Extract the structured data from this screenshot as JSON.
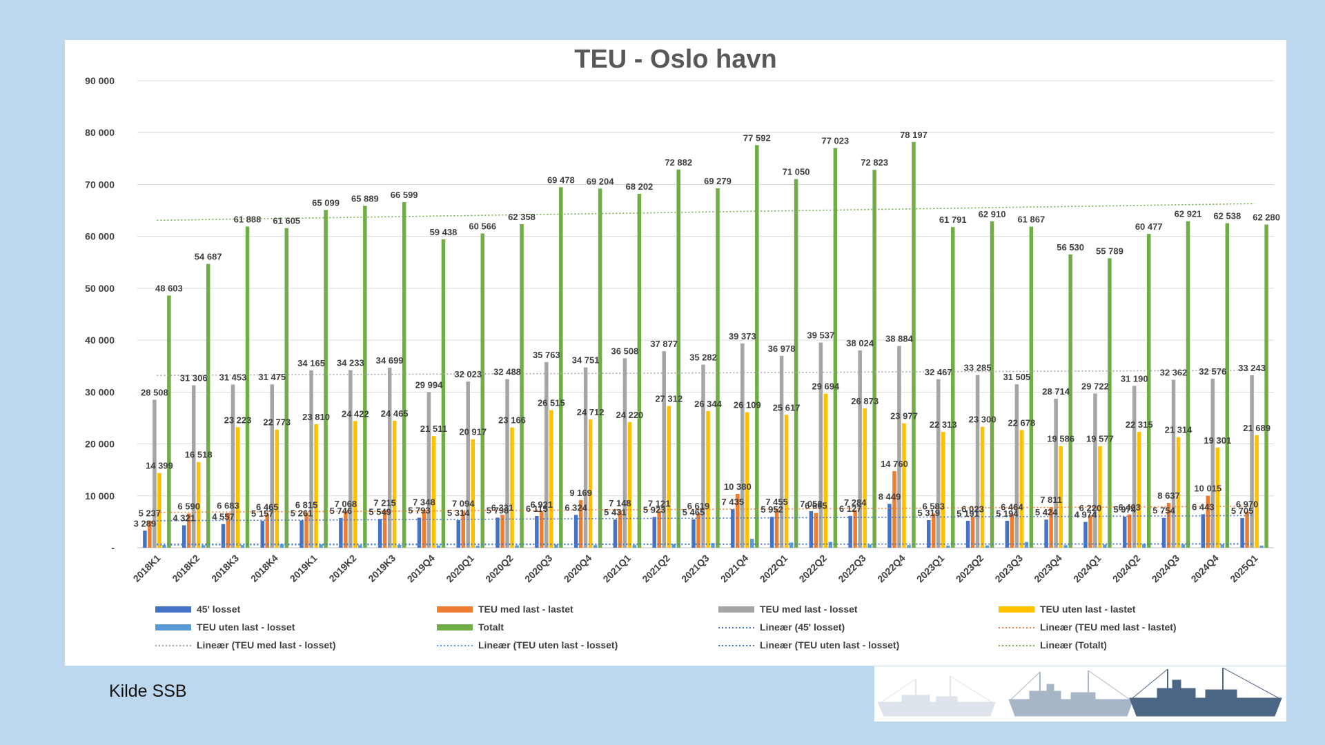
{
  "chart_data": {
    "type": "bar",
    "title": "TEU - Oslo havn",
    "ylim": [
      0,
      90000
    ],
    "yticks": [
      "-",
      "10 000",
      "20 000",
      "30 000",
      "40 000",
      "50 000",
      "60 000",
      "70 000",
      "80 000",
      "90 000"
    ],
    "grid": true,
    "legend_position": "bottom",
    "categories": [
      "2018K1",
      "2018K2",
      "2018K3",
      "2018K4",
      "2019K1",
      "2019K2",
      "2019K3",
      "2019Q4",
      "2020Q1",
      "2020Q2",
      "2020Q3",
      "2020Q4",
      "2021Q1",
      "2021Q2",
      "2021Q3",
      "2021Q4",
      "2022Q1",
      "2022Q2",
      "2022Q3",
      "2022Q4",
      "2023Q1",
      "2023Q2",
      "2023Q3",
      "2023Q4",
      "2024Q1",
      "2024Q2",
      "2024Q3",
      "2024Q4",
      "2025Q1"
    ],
    "series": [
      {
        "name": "45' losset",
        "color": "#4472c4",
        "values": [
          3289,
          4321,
          4557,
          5157,
          5261,
          5746,
          5549,
          5793,
          5314,
          5798,
          6115,
          6324,
          5431,
          5923,
          5465,
          7435,
          5952,
          7052,
          6127,
          8449,
          5319,
          5191,
          5194,
          5424,
          4974,
          5974,
          5754,
          6443,
          5705
        ],
        "labels": [
          "3 289",
          "4 321",
          "4 557",
          "5 157",
          "5 261",
          "5 746",
          "5 549",
          "5 793",
          "5 314",
          "5 798",
          "6 115",
          "6 324",
          "5 431",
          "5 923",
          "5 465",
          "7 435",
          "5 952",
          "7 052",
          "6 127",
          "8 449",
          "5 319",
          "5 191",
          "5 194",
          "5 424",
          "4 974",
          "5 974",
          "5 754",
          "6 443",
          "5 705"
        ]
      },
      {
        "name": "TEU med last - lastet",
        "color": "#ed7d31",
        "values": [
          5237,
          6590,
          6683,
          6465,
          6815,
          7068,
          7215,
          7348,
          7094,
          6331,
          6921,
          9169,
          7148,
          7121,
          6619,
          10380,
          7455,
          6695,
          7284,
          14760,
          6583,
          6023,
          6464,
          7811,
          6220,
          6403,
          8637,
          10015,
          6970
        ],
        "labels": [
          "5 237",
          "6 590",
          "6 683",
          "6 465",
          "6 815",
          "7 068",
          "7 215",
          "7 348",
          "7 094",
          "6 331",
          "6 921",
          "9 169",
          "7 148",
          "7 121",
          "6 619",
          "10 380",
          "7 455",
          "6 695",
          "7 284",
          "14 760",
          "6 583",
          "6 023",
          "6 464",
          "7 811",
          "6 220",
          "6 403",
          "8 637",
          "10 015",
          "6 970"
        ]
      },
      {
        "name": "TEU med last - losset",
        "color": "#a5a5a5",
        "values": [
          28508,
          31306,
          31453,
          31475,
          34165,
          34233,
          34699,
          29994,
          32023,
          32488,
          35763,
          34751,
          36508,
          37877,
          35282,
          39373,
          36978,
          39537,
          38024,
          38884,
          32467,
          33285,
          31505,
          28714,
          29722,
          31190,
          32362,
          32576,
          33243
        ],
        "labels": [
          "28 508",
          "31 306",
          "31 453",
          "31 475",
          "34 165",
          "34 233",
          "34 699",
          "29 994",
          "32 023",
          "32 488",
          "35 763",
          "34 751",
          "36 508",
          "37 877",
          "35 282",
          "39 373",
          "36 978",
          "39 537",
          "38 024",
          "38 884",
          "32 467",
          "33 285",
          "31 505",
          "28 714",
          "29 722",
          "31 190",
          "32 362",
          "32 576",
          "33 243"
        ]
      },
      {
        "name": "TEU uten last - lastet",
        "color": "#ffc000",
        "values": [
          14399,
          16518,
          23223,
          22773,
          23810,
          24422,
          24465,
          21511,
          20917,
          23166,
          26515,
          24712,
          24220,
          27312,
          26344,
          26109,
          25617,
          29694,
          26873,
          23977,
          22313,
          23300,
          22678,
          19586,
          19577,
          22315,
          21314,
          19301,
          21689
        ],
        "labels": [
          "14 399",
          "16 518",
          "23 223",
          "22 773",
          "23 810",
          "24 422",
          "24 465",
          "21 511",
          "20 917",
          "23 166",
          "26 515",
          "24 712",
          "24 220",
          "27 312",
          "26 344",
          "26 109",
          "25 617",
          "29 694",
          "26 873",
          "23 977",
          "22 313",
          "23 300",
          "22 678",
          "19 586",
          "19 577",
          "22 315",
          "21 314",
          "19 301",
          "21 689"
        ]
      },
      {
        "name": "TEU uten last - losset",
        "color": "#5b9bd5",
        "values": [
          500,
          480,
          520,
          700,
          650,
          500,
          550,
          420,
          380,
          450,
          600,
          500,
          520,
          700,
          900,
          1700,
          1000,
          1100,
          600,
          500,
          420,
          450,
          1100,
          500,
          600,
          700,
          650,
          650,
          400
        ],
        "labels": []
      },
      {
        "name": "Totalt",
        "color": "#70ad47",
        "values": [
          48603,
          54687,
          61888,
          61605,
          65099,
          65889,
          66599,
          59438,
          60566,
          62358,
          69478,
          69204,
          68202,
          72882,
          69279,
          77592,
          71050,
          77023,
          72823,
          78197,
          61791,
          62910,
          61867,
          56530,
          55789,
          60477,
          62921,
          62538,
          62280
        ],
        "labels": [
          "48 603",
          "54 687",
          "61 888",
          "61 605",
          "65 099",
          "65 889",
          "66 599",
          "59 438",
          "60 566",
          "62 358",
          "69 478",
          "69 204",
          "68 202",
          "72 882",
          "69 279",
          "77 592",
          "71 050",
          "77 023",
          "72 823",
          "78 197",
          "61 791",
          "62 910",
          "61 867",
          "56 530",
          "55 789",
          "60 477",
          "62 921",
          "62 538",
          "62 280"
        ]
      }
    ],
    "trendlines": [
      {
        "name": "Lineær (45' losset)",
        "color": "#4472c4",
        "start": 5200,
        "end": 6200
      },
      {
        "name": "Lineær (TEU med last - lastet)",
        "color": "#ed7d31",
        "start": 6800,
        "end": 8000
      },
      {
        "name": "Lineær (TEU med last - losset)",
        "color": "#a5a5a5",
        "start": 33200,
        "end": 34200
      },
      {
        "name": "Lineær (TEU uten last - losset)",
        "color": "#5b9bd5",
        "start": 500,
        "end": 800
      },
      {
        "name": "Lineær (TEU uten last - losset)",
        "color": "#4472c4",
        "start": 700,
        "end": 700
      },
      {
        "name": "Lineær (Totalt)",
        "color": "#70ad47",
        "start": 63100,
        "end": 66300
      }
    ],
    "legend": [
      {
        "label": "45' losset",
        "color": "#4472c4",
        "kind": "box"
      },
      {
        "label": "TEU med last - lastet",
        "color": "#ed7d31",
        "kind": "box"
      },
      {
        "label": "TEU med last - losset",
        "color": "#a5a5a5",
        "kind": "box"
      },
      {
        "label": "TEU uten last - lastet",
        "color": "#ffc000",
        "kind": "box"
      },
      {
        "label": "TEU uten last - losset",
        "color": "#5b9bd5",
        "kind": "box"
      },
      {
        "label": "Totalt",
        "color": "#70ad47",
        "kind": "box"
      },
      {
        "label": "Lineær (45' losset)",
        "color": "#4472c4",
        "kind": "dot"
      },
      {
        "label": "Lineær (TEU med last - lastet)",
        "color": "#ed7d31",
        "kind": "dot"
      },
      {
        "label": "Lineær (TEU med last - losset)",
        "color": "#a5a5a5",
        "kind": "dot"
      },
      {
        "label": "Lineær (TEU uten last - losset)",
        "color": "#5b9bd5",
        "kind": "dot"
      },
      {
        "label": "Lineær (TEU uten last - losset)",
        "color": "#4472c4",
        "kind": "dot"
      },
      {
        "label": "Lineær (Totalt)",
        "color": "#70ad47",
        "kind": "dot"
      }
    ]
  },
  "footer": {
    "source": "Kilde SSB"
  },
  "illustration": {
    "name": "ship-silhouettes",
    "colors": [
      "#dde3ea",
      "#a7b6c6",
      "#4c6685"
    ]
  }
}
